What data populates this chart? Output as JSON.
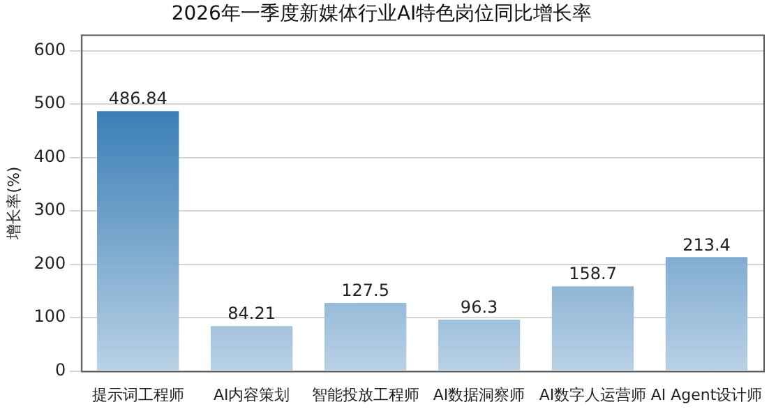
{
  "chart_data": {
    "type": "bar",
    "title": "2026年一季度新媒体行业AI特色岗位同比增长率",
    "ylabel": "增长率(%)",
    "categories": [
      "提示词工程师",
      "AI内容策划",
      "智能投放工程师",
      "AI数据洞察师",
      "AI数字人运营师",
      "AI Agent设计师"
    ],
    "values": [
      486.84,
      84.21,
      127.5,
      96.3,
      158.7,
      213.4
    ],
    "color": "#1565a8",
    "ylim": [
      0,
      630
    ],
    "yticks": [
      0,
      100,
      200,
      300,
      400,
      500,
      600
    ],
    "grid": "y",
    "data_labels": true,
    "legend": false
  }
}
